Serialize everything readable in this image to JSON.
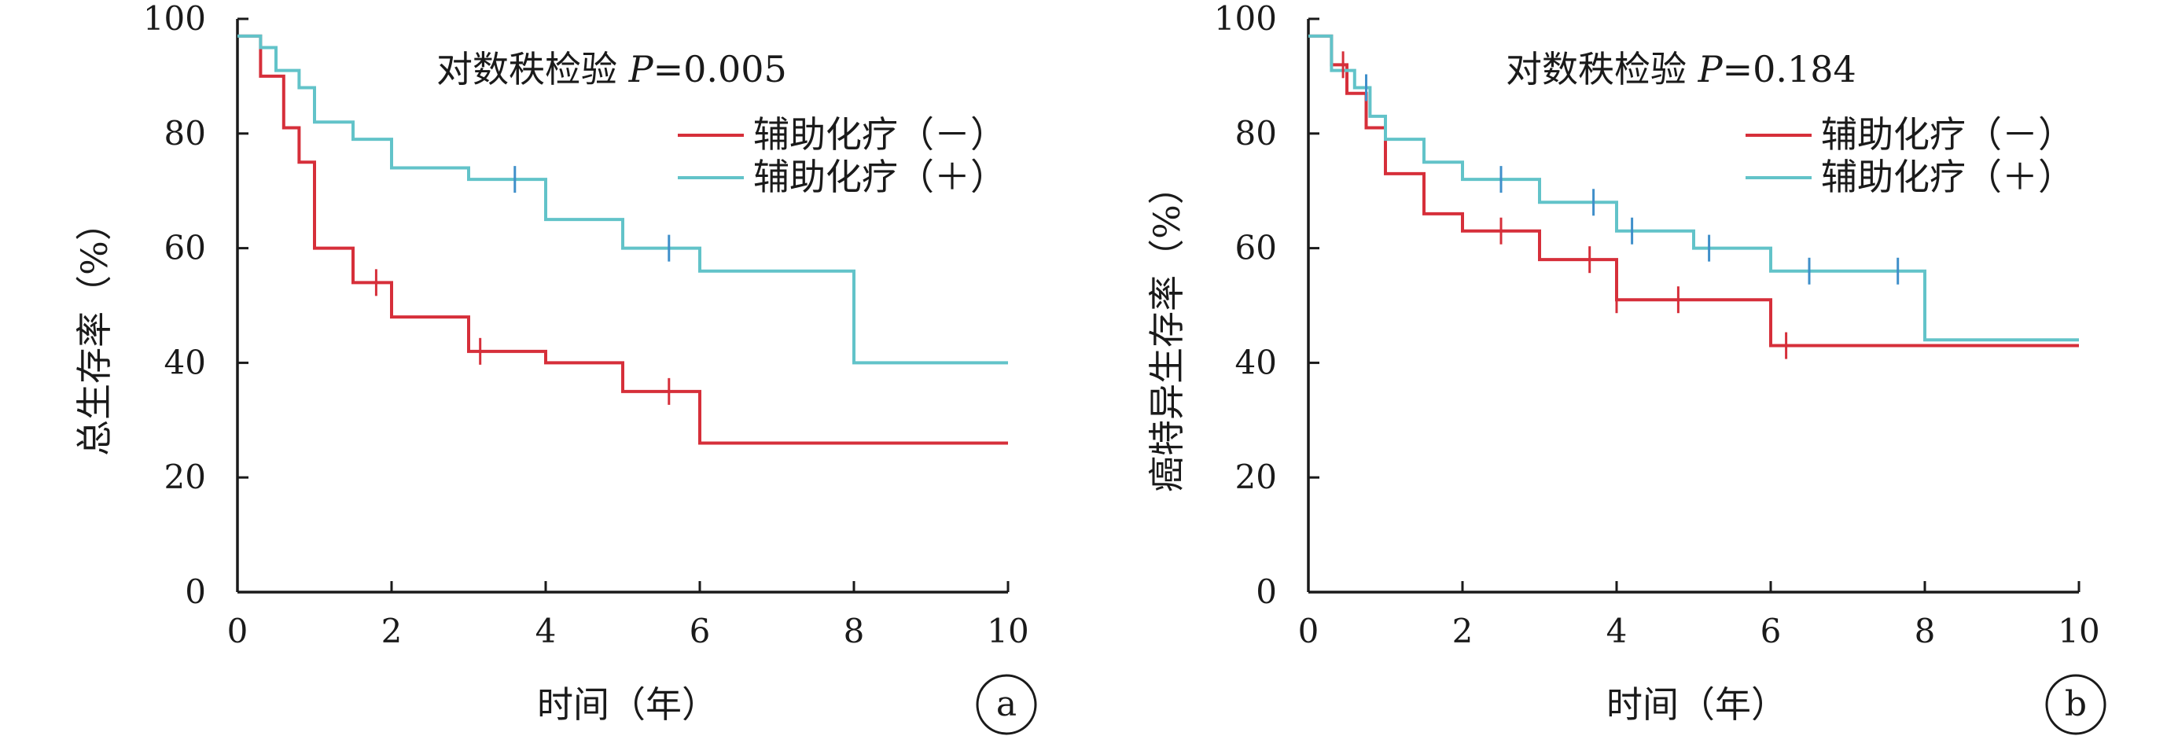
{
  "chart_data": [
    {
      "type": "line",
      "panel_label": "a",
      "title": "",
      "annotation": "对数秩检验 P=0.005",
      "annotation_parts": [
        "对数秩检验 ",
        "P",
        "=0.005"
      ],
      "xlabel": "时间（年）",
      "ylabel": "总生存率（%）",
      "xlim": [
        0,
        10
      ],
      "ylim": [
        0,
        100
      ],
      "xticks": [
        0,
        2,
        4,
        6,
        8,
        10
      ],
      "yticks": [
        0,
        20,
        40,
        60,
        80,
        100
      ],
      "legend_position": "top-right",
      "series": [
        {
          "name": "辅助化疗（－）",
          "color": "#d62f3a",
          "steps": [
            [
              0,
              97
            ],
            [
              0.3,
              90
            ],
            [
              0.6,
              81
            ],
            [
              0.8,
              75
            ],
            [
              1.0,
              60
            ],
            [
              1.5,
              54
            ],
            [
              2.0,
              48
            ],
            [
              3.0,
              42
            ],
            [
              4.0,
              40
            ],
            [
              5.0,
              35
            ],
            [
              6.0,
              26
            ],
            [
              10.0,
              26
            ]
          ],
          "censored": [
            [
              1.8,
              54
            ],
            [
              3.15,
              42
            ],
            [
              5.6,
              35
            ]
          ]
        },
        {
          "name": "辅助化疗（＋）",
          "color": "#62c3c9",
          "steps": [
            [
              0,
              97
            ],
            [
              0.3,
              95
            ],
            [
              0.5,
              91
            ],
            [
              0.8,
              88
            ],
            [
              1.0,
              82
            ],
            [
              1.5,
              79
            ],
            [
              2.0,
              74
            ],
            [
              3.0,
              72
            ],
            [
              4.0,
              65
            ],
            [
              5.0,
              60
            ],
            [
              6.0,
              56
            ],
            [
              8.0,
              40
            ],
            [
              10.0,
              40
            ]
          ],
          "censored": [
            [
              3.6,
              72
            ],
            [
              5.6,
              60
            ]
          ]
        }
      ],
      "censor_colors": {
        "辅助化疗（－）": "#d62f3a",
        "辅助化疗（＋）": "#3f8fca"
      }
    },
    {
      "type": "line",
      "panel_label": "b",
      "title": "",
      "annotation": "对数秩检验 P=0.184",
      "annotation_parts": [
        "对数秩检验 ",
        "P",
        "=0.184"
      ],
      "xlabel": "时间（年）",
      "ylabel": "癌特异生存率（%）",
      "xlim": [
        0,
        10
      ],
      "ylim": [
        0,
        100
      ],
      "xticks": [
        0,
        2,
        4,
        6,
        8,
        10
      ],
      "yticks": [
        0,
        20,
        40,
        60,
        80,
        100
      ],
      "legend_position": "top-right",
      "series": [
        {
          "name": "辅助化疗（－）",
          "color": "#d62f3a",
          "steps": [
            [
              0,
              97
            ],
            [
              0.3,
              92
            ],
            [
              0.5,
              87
            ],
            [
              0.75,
              81
            ],
            [
              1.0,
              73
            ],
            [
              1.5,
              66
            ],
            [
              2.0,
              63
            ],
            [
              3.0,
              58
            ],
            [
              4.0,
              51
            ],
            [
              6.0,
              43
            ],
            [
              10.0,
              43
            ]
          ],
          "censored": [
            [
              0.45,
              92
            ],
            [
              2.5,
              63
            ],
            [
              3.65,
              58
            ],
            [
              4.0,
              51
            ],
            [
              4.8,
              51
            ],
            [
              6.2,
              43
            ]
          ]
        },
        {
          "name": "辅助化疗（＋）",
          "color": "#62c3c9",
          "steps": [
            [
              0,
              97
            ],
            [
              0.3,
              91
            ],
            [
              0.6,
              88
            ],
            [
              0.8,
              83
            ],
            [
              1.0,
              79
            ],
            [
              1.5,
              75
            ],
            [
              2.0,
              72
            ],
            [
              3.0,
              68
            ],
            [
              4.0,
              63
            ],
            [
              5.0,
              60
            ],
            [
              6.0,
              56
            ],
            [
              8.0,
              44
            ],
            [
              10.0,
              44
            ]
          ],
          "censored": [
            [
              0.75,
              88
            ],
            [
              2.5,
              72
            ],
            [
              3.7,
              68
            ],
            [
              4.2,
              63
            ],
            [
              5.2,
              60
            ],
            [
              6.5,
              56
            ],
            [
              7.65,
              56
            ]
          ]
        }
      ],
      "censor_colors": {
        "辅助化疗（－）": "#d62f3a",
        "辅助化疗（＋）": "#3f8fca"
      }
    }
  ]
}
